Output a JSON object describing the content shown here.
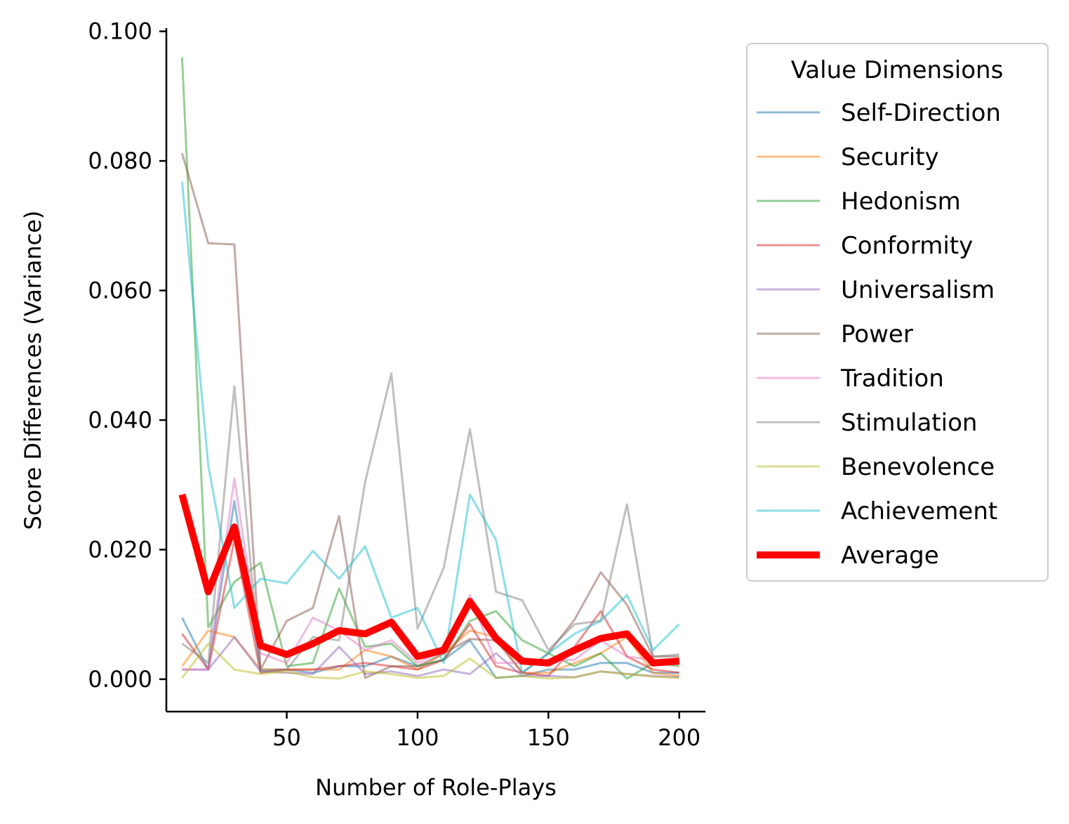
{
  "chart_data": {
    "type": "line",
    "xlabel": "Number of Role-Plays",
    "ylabel": "Score Differences (Variance)",
    "xlim": [
      4,
      210
    ],
    "ylim": [
      -0.005,
      0.1005
    ],
    "x_ticks": [
      50,
      100,
      150,
      200
    ],
    "x_tick_labels": [
      "50",
      "100",
      "150",
      "200"
    ],
    "y_ticks": [
      0,
      0.02,
      0.04,
      0.06,
      0.08,
      0.1
    ],
    "y_tick_labels": [
      "0.000",
      "0.020",
      "0.040",
      "0.060",
      "0.080",
      "0.100"
    ],
    "legend_title": "Value Dimensions",
    "legend_position": "outside-right",
    "x": [
      10,
      20,
      30,
      40,
      50,
      60,
      70,
      80,
      90,
      100,
      110,
      120,
      130,
      140,
      150,
      160,
      170,
      180,
      190,
      200
    ],
    "series": [
      {
        "name": "Self-Direction",
        "color": "#1f77b4",
        "values": [
          0.0095,
          0.0015,
          0.0275,
          0.0015,
          0.0015,
          0.001,
          0.002,
          0.002,
          0.0035,
          0.002,
          0.003,
          0.006,
          0.0002,
          0.0005,
          0.0015,
          0.0015,
          0.0025,
          0.0025,
          0.001,
          0.001
        ]
      },
      {
        "name": "Security",
        "color": "#ff7f0e",
        "values": [
          0.002,
          0.0075,
          0.0065,
          0.0015,
          0.0015,
          0.0015,
          0.0015,
          0.0045,
          0.0035,
          0.0015,
          0.004,
          0.0075,
          0.0065,
          0.001,
          0.001,
          0.0025,
          0.004,
          0.0065,
          0.001,
          0.0005
        ]
      },
      {
        "name": "Hedonism",
        "color": "#2ca02c",
        "values": [
          0.096,
          0.008,
          0.015,
          0.018,
          0.002,
          0.0025,
          0.014,
          0.005,
          0.0055,
          0.002,
          0.003,
          0.009,
          0.0105,
          0.006,
          0.004,
          0.002,
          0.004,
          0.0001,
          0.0025,
          0.002
        ]
      },
      {
        "name": "Conformity",
        "color": "#d62728",
        "values": [
          0.007,
          0.0015,
          0.0215,
          0.001,
          0.0015,
          0.0015,
          0.002,
          0.0025,
          0.002,
          0.0015,
          0.003,
          0.0085,
          0.002,
          0.001,
          0.0005,
          0.005,
          0.0105,
          0.0035,
          0.0015,
          0.001
        ]
      },
      {
        "name": "Universalism",
        "color": "#9467bd",
        "values": [
          0.0015,
          0.0015,
          0.0065,
          0.0012,
          0.001,
          0.0008,
          0.005,
          0.0008,
          0.0012,
          0.0005,
          0.0015,
          0.0008,
          0.004,
          0.0005,
          0.0005,
          0.0003,
          0.0012,
          0.0008,
          0.0005,
          0.0003
        ]
      },
      {
        "name": "Power",
        "color": "#8c564b",
        "values": [
          0.0812,
          0.0673,
          0.0671,
          0.0015,
          0.009,
          0.011,
          0.0252,
          0.0002,
          0.002,
          0.002,
          0.004,
          0.0062,
          0.006,
          0.001,
          0.004,
          0.0092,
          0.0165,
          0.0115,
          0.0035,
          0.0035
        ]
      },
      {
        "name": "Tradition",
        "color": "#e377c2",
        "values": [
          0.0015,
          0.0015,
          0.031,
          0.004,
          0.0025,
          0.0095,
          0.0075,
          0.0045,
          0.006,
          0.0025,
          0.0045,
          0.013,
          0.0025,
          0.0025,
          0.003,
          0.003,
          0.006,
          0.0035,
          0.003,
          0.003
        ]
      },
      {
        "name": "Stimulation",
        "color": "#7f7f7f",
        "values": [
          0.0055,
          0.0025,
          0.0452,
          0.0012,
          0.0015,
          0.0065,
          0.006,
          0.0305,
          0.0472,
          0.0078,
          0.0172,
          0.0386,
          0.0135,
          0.0122,
          0.0045,
          0.0085,
          0.009,
          0.027,
          0.0035,
          0.0038
        ]
      },
      {
        "name": "Benevolence",
        "color": "#bcbd22",
        "values": [
          0.0002,
          0.0055,
          0.0015,
          0.0008,
          0.0012,
          0.0003,
          0.0001,
          0.0012,
          0.0008,
          0.0002,
          0.0005,
          0.0032,
          0.0002,
          0.0005,
          0.0001,
          0.0003,
          0.0012,
          0.0008,
          0.0004,
          0.0002
        ]
      },
      {
        "name": "Achievement",
        "color": "#17becf",
        "values": [
          0.0768,
          0.033,
          0.011,
          0.0155,
          0.0148,
          0.0198,
          0.0155,
          0.0205,
          0.0095,
          0.011,
          0.0025,
          0.0285,
          0.0215,
          0.001,
          0.004,
          0.007,
          0.009,
          0.013,
          0.0045,
          0.0085
        ]
      },
      {
        "name": "Average",
        "color": "#ff0000",
        "values": [
          0.0285,
          0.0135,
          0.0235,
          0.0052,
          0.0038,
          0.0055,
          0.0075,
          0.007,
          0.0088,
          0.0035,
          0.0045,
          0.012,
          0.0063,
          0.0028,
          0.0025,
          0.0045,
          0.0063,
          0.007,
          0.0025,
          0.0028
        ]
      }
    ]
  }
}
